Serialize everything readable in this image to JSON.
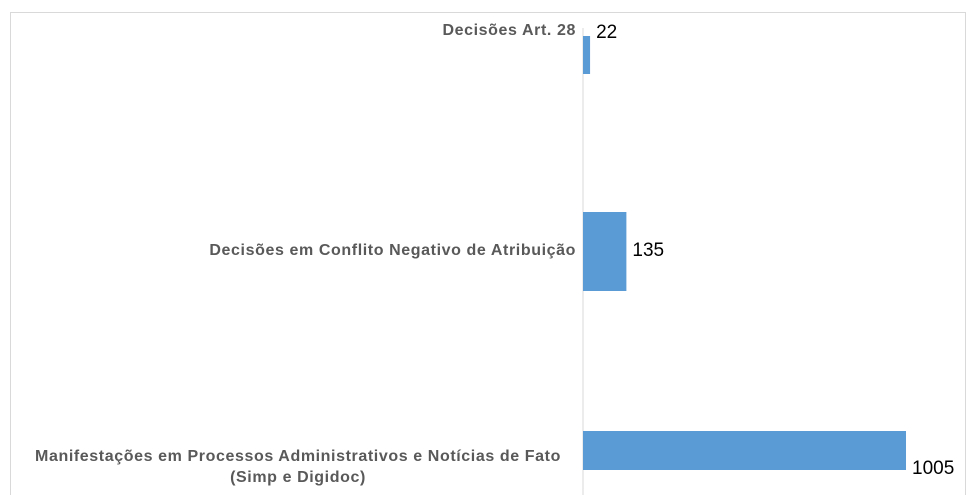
{
  "chart_data": {
    "type": "barh",
    "categories": [
      "Decisões Art. 28",
      "Decisões em Conflito Negativo de Atribuição",
      "Manifestações em Processos Administrativos e Notícias de Fato (Simp e Digidoc)"
    ],
    "values": [
      22,
      135,
      1005
    ],
    "color": "#5b9bd5"
  }
}
